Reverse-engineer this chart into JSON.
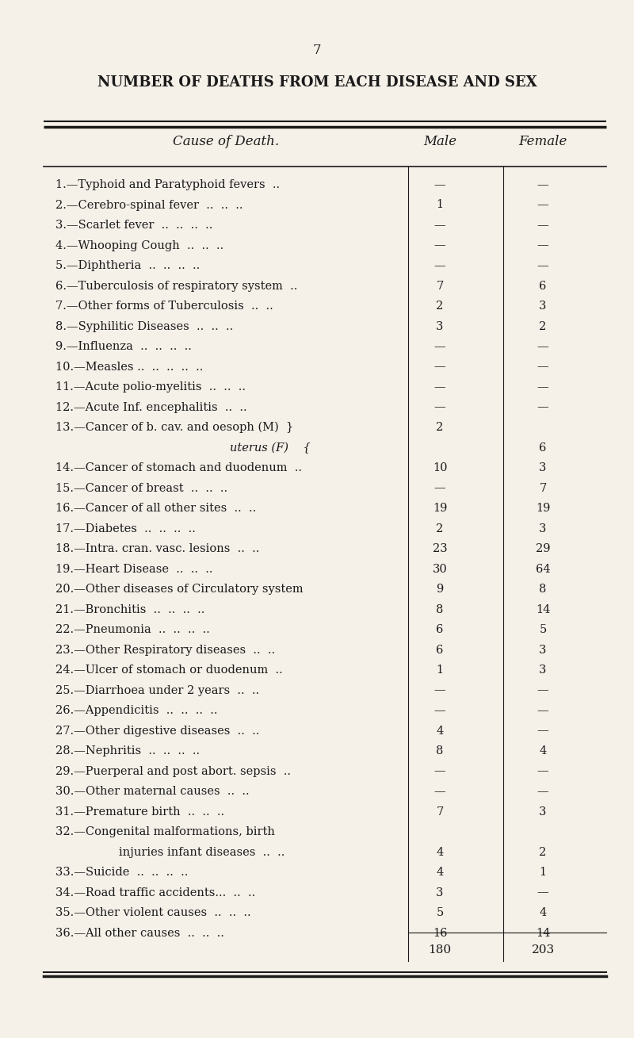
{
  "page_number": "7",
  "title": "NUMBER OF DEATHS FROM EACH DISEASE AND SEX",
  "col_headers": [
    "Cause of Death.",
    "Male",
    "Female"
  ],
  "rows": [
    {
      "label": "1.—Typhoid and Paratyphoid fevers  ..",
      "male": "—",
      "female": "—",
      "label2": null
    },
    {
      "label": "2.—Cerebro-spinal fever  ..  ..  ..",
      "male": "1",
      "female": "—",
      "label2": null
    },
    {
      "label": "3.—Scarlet fever  ..  ..  ..  ..",
      "male": "—",
      "female": "—",
      "label2": null
    },
    {
      "label": "4.—Whooping Cough  ..  ..  ..",
      "male": "—",
      "female": "—",
      "label2": null
    },
    {
      "label": "5.—Diphtheria  ..  ..  ..  ..",
      "male": "—",
      "female": "—",
      "label2": null
    },
    {
      "label": "6.—Tuberculosis of respiratory system  ..",
      "male": "7",
      "female": "6",
      "label2": null
    },
    {
      "label": "7.—Other forms of Tuberculosis  ..  ..",
      "male": "2",
      "female": "3",
      "label2": null
    },
    {
      "label": "8.—Syphilitic Diseases  ..  ..  ..",
      "male": "3",
      "female": "2",
      "label2": null
    },
    {
      "label": "9.—Influenza  ..  ..  ..  ..",
      "male": "—",
      "female": "—",
      "label2": null
    },
    {
      "label": "10.—Measles ..  ..  ..  ..  ..",
      "male": "—",
      "female": "—",
      "label2": null
    },
    {
      "label": "11.—Acute polio-myelitis  ..  ..  ..",
      "male": "—",
      "female": "—",
      "label2": null
    },
    {
      "label": "12.—Acute Inf. encephalitis  ..  ..",
      "male": "—",
      "female": "—",
      "label2": null
    },
    {
      "label": "13.—Cancer of b. cav. and oesoph (M) }",
      "male": "2",
      "female": "",
      "label2": "              uterus (F)    {"
    },
    {
      "label": null,
      "male": "",
      "female": "6",
      "label2": null
    },
    {
      "label": "14.—Cancer of stomach and duodenum  ..",
      "male": "10",
      "female": "3",
      "label2": null
    },
    {
      "label": "15.—Cancer of breast  ..  ..  ..",
      "male": "—",
      "female": "7",
      "label2": null
    },
    {
      "label": "16.—Cancer of all other sites  ..  ..",
      "male": "19",
      "female": "19",
      "label2": null
    },
    {
      "label": "17.—Diabetes  ..  ..  ..  ..",
      "male": "2",
      "female": "3",
      "label2": null
    },
    {
      "label": "18.—Intra. cran. vasc. lesions  ..  ..",
      "male": "23",
      "female": "29",
      "label2": null
    },
    {
      "label": "19.—Heart Disease  ..  ..  ..",
      "male": "30",
      "female": "64",
      "label2": null
    },
    {
      "label": "20.—Other diseases of Circulatory system",
      "male": "9",
      "female": "8",
      "label2": null
    },
    {
      "label": "21.—Bronchitis  ..  ..  ..  ..",
      "male": "8",
      "female": "14",
      "label2": null
    },
    {
      "label": "22.—Pneumonia  ..  ..  ..  ..",
      "male": "6",
      "female": "5",
      "label2": null
    },
    {
      "label": "23.—Other Respiratory diseases  ..  ..",
      "male": "6",
      "female": "3",
      "label2": null
    },
    {
      "label": "24.—Ulcer of stomach or duodenum  ..",
      "male": "1",
      "female": "3",
      "label2": null
    },
    {
      "label": "25.—Diarrhoea under 2 years  ..  ..",
      "male": "—",
      "female": "—",
      "label2": null
    },
    {
      "label": "26.—Appendicitis  ..  ..  ..  ..",
      "male": "—",
      "female": "—",
      "label2": null
    },
    {
      "label": "27.—Other digestive diseases  ..  ..",
      "male": "4",
      "female": "—",
      "label2": null
    },
    {
      "label": "28.—Nephritis  ..  ..  ..  ..",
      "male": "8",
      "female": "4",
      "label2": null
    },
    {
      "label": "29.—Puerperal and post abort. sepsis  ..",
      "male": "—",
      "female": "—",
      "label2": null
    },
    {
      "label": "30.—Other maternal causes  ..  ..",
      "male": "—",
      "female": "—",
      "label2": null
    },
    {
      "label": "31.—Premature birth  ..  ..  ..",
      "male": "7",
      "female": "3",
      "label2": null
    },
    {
      "label": "32.—Congenital malformations, birth",
      "male": "",
      "female": "",
      "label2": "       injuries infant diseases  ..  .."
    },
    {
      "label": null,
      "male": "4",
      "female": "2",
      "label2": null
    },
    {
      "label": "33.—Suicide  ..  ..  ..  ..",
      "male": "4",
      "female": "1",
      "label2": null
    },
    {
      "label": "34.—Road traffic accidents...  ..  ..",
      "male": "3",
      "female": "—",
      "label2": null
    },
    {
      "label": "35.—Other violent causes  ..  ..  ..",
      "male": "5",
      "female": "4",
      "label2": null
    },
    {
      "label": "36.—All other causes  ..  ..  ..",
      "male": "16",
      "female": "14",
      "label2": null
    }
  ],
  "totals": {
    "male": "180",
    "female": "203"
  },
  "bg_color": "#f5f0e8",
  "text_color": "#1a1a1a",
  "font_family": "serif",
  "title_fontsize": 13,
  "header_fontsize": 12,
  "body_fontsize": 10.5,
  "page_num_fontsize": 12
}
